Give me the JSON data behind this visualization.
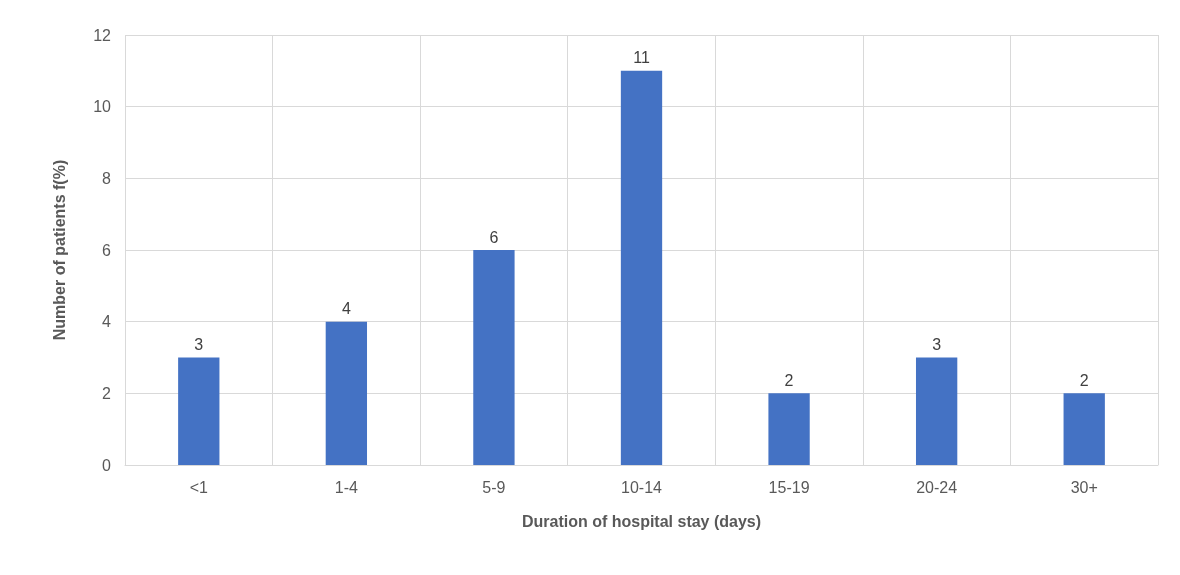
{
  "chart_data": {
    "type": "bar",
    "xlabel": "Duration of hospital stay (days)",
    "ylabel": "Number of patients f(%)",
    "categories": [
      "<1",
      "1-4",
      "5-9",
      "10-14",
      "15-19",
      "20-24",
      "30+"
    ],
    "values": [
      3,
      4,
      6,
      11,
      2,
      3,
      2
    ],
    "color": "#4472c4",
    "ylim": [
      0,
      12
    ],
    "yticks": [
      0,
      2,
      4,
      6,
      8,
      10,
      12
    ],
    "grid": true,
    "data_labels": true
  }
}
